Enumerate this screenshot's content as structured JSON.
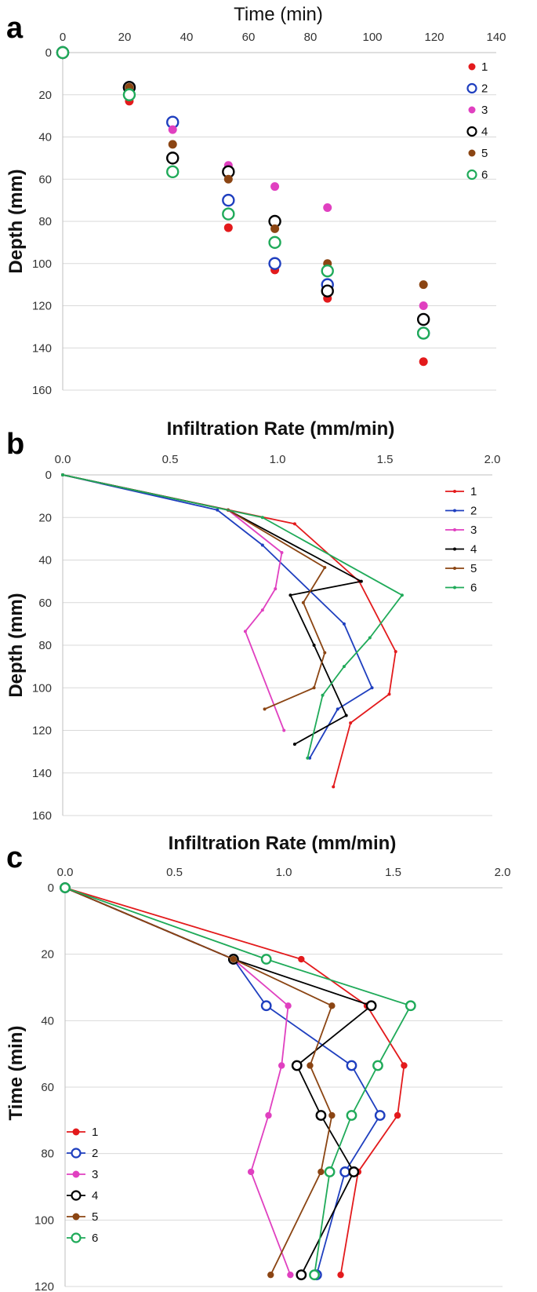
{
  "colors": {
    "s1": "#e31a1c",
    "s2": "#1f3fbf",
    "s3": "#e040c0",
    "s4": "#000000",
    "s5": "#8b4513",
    "s6": "#1faa59"
  },
  "chart_data": [
    {
      "panel": "a",
      "type": "scatter",
      "title": "",
      "xlabel": "Time (min)",
      "ylabel": "Depth (mm)",
      "xlim": [
        0,
        140
      ],
      "ylim": [
        0,
        160
      ],
      "x_ticks": [
        0,
        20,
        40,
        60,
        80,
        100,
        120,
        140
      ],
      "y_ticks": [
        0,
        20,
        40,
        60,
        80,
        100,
        120,
        140,
        160
      ],
      "x_axis_position": "top",
      "y_reversed": true,
      "legend_position": "top-right",
      "series": [
        {
          "name": "1",
          "color_key": "s1",
          "marker": "dot",
          "x": [
            0,
            21.5,
            35.5,
            53.5,
            68.5,
            85.5,
            116.5
          ],
          "y": [
            0,
            23,
            50,
            83,
            103,
            116.5,
            146.5
          ]
        },
        {
          "name": "2",
          "color_key": "s2",
          "marker": "ring",
          "x": [
            0,
            21.5,
            35.5,
            53.5,
            68.5,
            85.5,
            116.5
          ],
          "y": [
            0,
            16.5,
            33,
            70,
            100,
            110,
            133
          ]
        },
        {
          "name": "3",
          "color_key": "s3",
          "marker": "dot",
          "x": [
            0,
            21.5,
            35.5,
            53.5,
            68.5,
            85.5,
            116.5
          ],
          "y": [
            0,
            16.5,
            36.5,
            53.5,
            63.5,
            73.5,
            120
          ]
        },
        {
          "name": "4",
          "color_key": "s4",
          "marker": "ring",
          "x": [
            0,
            21.5,
            35.5,
            53.5,
            68.5,
            85.5,
            116.5
          ],
          "y": [
            0,
            16.5,
            50,
            56.5,
            80,
            113,
            126.5
          ]
        },
        {
          "name": "5",
          "color_key": "s5",
          "marker": "dot",
          "x": [
            0,
            21.5,
            35.5,
            53.5,
            68.5,
            85.5,
            116.5
          ],
          "y": [
            0,
            16.5,
            43.5,
            60,
            83.5,
            100,
            110
          ]
        },
        {
          "name": "6",
          "color_key": "s6",
          "marker": "ring",
          "x": [
            0,
            21.5,
            35.5,
            53.5,
            68.5,
            85.5,
            116.5
          ],
          "y": [
            0,
            20,
            56.5,
            76.5,
            90,
            103.5,
            133
          ]
        }
      ]
    },
    {
      "panel": "b",
      "type": "line",
      "title": "",
      "xlabel": "Infiltration Rate (mm/min)",
      "ylabel": "Depth (mm)",
      "xlim": [
        0,
        2
      ],
      "ylim": [
        0,
        160
      ],
      "x_ticks": [
        "0.0",
        "0.5",
        "1.0",
        "1.5",
        "2.0"
      ],
      "y_ticks": [
        0,
        20,
        40,
        60,
        80,
        100,
        120,
        140,
        160
      ],
      "x_axis_position": "top",
      "y_reversed": true,
      "legend_position": "top-right",
      "series": [
        {
          "name": "1",
          "color_key": "s1",
          "x": [
            0,
            1.08,
            1.38,
            1.55,
            1.52,
            1.34,
            1.26
          ],
          "y": [
            0,
            23,
            50,
            83,
            103,
            116.5,
            146.5
          ]
        },
        {
          "name": "2",
          "color_key": "s2",
          "x": [
            0,
            0.72,
            0.93,
            1.31,
            1.44,
            1.28,
            1.15
          ],
          "y": [
            0,
            16.5,
            33,
            70,
            100,
            110,
            133
          ]
        },
        {
          "name": "3",
          "color_key": "s3",
          "x": [
            0,
            0.77,
            1.02,
            0.99,
            0.93,
            0.85,
            1.03
          ],
          "y": [
            0,
            16.5,
            36.5,
            53.5,
            63.5,
            73.5,
            120
          ]
        },
        {
          "name": "4",
          "color_key": "s4",
          "x": [
            0,
            0.77,
            1.39,
            1.06,
            1.17,
            1.32,
            1.08
          ],
          "y": [
            0,
            16.5,
            50,
            56.5,
            80,
            113,
            126.5
          ]
        },
        {
          "name": "5",
          "color_key": "s5",
          "x": [
            0,
            0.77,
            1.22,
            1.12,
            1.22,
            1.17,
            0.94
          ],
          "y": [
            0,
            16.5,
            43.5,
            60,
            83.5,
            100,
            110
          ]
        },
        {
          "name": "6",
          "color_key": "s6",
          "x": [
            0,
            0.93,
            1.58,
            1.43,
            1.31,
            1.21,
            1.14
          ],
          "y": [
            0,
            20,
            56.5,
            76.5,
            90,
            103.5,
            133
          ]
        }
      ]
    },
    {
      "panel": "c",
      "type": "line",
      "title": "",
      "xlabel": "Infiltration Rate (mm/min)",
      "ylabel": "Time (min)",
      "xlim": [
        0,
        2
      ],
      "ylim": [
        0,
        120
      ],
      "x_ticks": [
        "0.0",
        "0.5",
        "1.0",
        "1.5",
        "2.0"
      ],
      "y_ticks": [
        0,
        20,
        40,
        60,
        80,
        100,
        120
      ],
      "x_axis_position": "top",
      "y_reversed": true,
      "legend_position": "bottom-left",
      "series": [
        {
          "name": "1",
          "color_key": "s1",
          "marker": "dot",
          "x": [
            0,
            1.08,
            1.38,
            1.55,
            1.52,
            1.34,
            1.26
          ],
          "y": [
            0,
            21.5,
            35.5,
            53.5,
            68.5,
            85.5,
            116.5
          ]
        },
        {
          "name": "2",
          "color_key": "s2",
          "marker": "ring",
          "x": [
            0,
            0.77,
            0.92,
            1.31,
            1.44,
            1.28,
            1.15
          ],
          "y": [
            0,
            21.5,
            35.5,
            53.5,
            68.5,
            85.5,
            116.5
          ]
        },
        {
          "name": "3",
          "color_key": "s3",
          "marker": "dot",
          "x": [
            0,
            0.77,
            1.02,
            0.99,
            0.93,
            0.85,
            1.03
          ],
          "y": [
            0,
            21.5,
            35.5,
            53.5,
            68.5,
            85.5,
            116.5
          ]
        },
        {
          "name": "4",
          "color_key": "s4",
          "marker": "ring",
          "x": [
            0,
            0.77,
            1.4,
            1.06,
            1.17,
            1.32,
            1.08
          ],
          "y": [
            0,
            21.5,
            35.5,
            53.5,
            68.5,
            85.5,
            116.5
          ]
        },
        {
          "name": "5",
          "color_key": "s5",
          "marker": "dot",
          "x": [
            0,
            0.77,
            1.22,
            1.12,
            1.22,
            1.17,
            0.94
          ],
          "y": [
            0,
            21.5,
            35.5,
            53.5,
            68.5,
            85.5,
            116.5
          ]
        },
        {
          "name": "6",
          "color_key": "s6",
          "marker": "ring",
          "x": [
            0,
            0.92,
            1.58,
            1.43,
            1.31,
            1.21,
            1.14
          ],
          "y": [
            0,
            21.5,
            35.5,
            53.5,
            68.5,
            85.5,
            116.5
          ]
        }
      ]
    }
  ]
}
